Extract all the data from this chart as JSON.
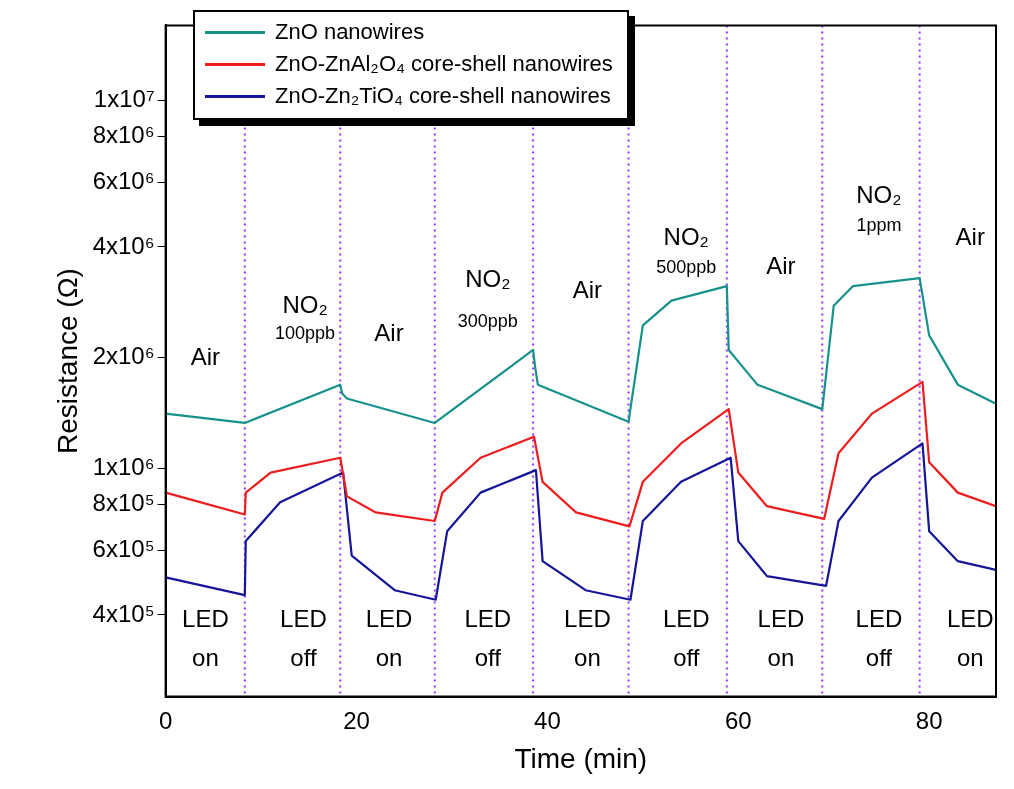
{
  "chart_data": {
    "type": "line",
    "xlabel": "Time (min)",
    "ylabel": "Resistance (Ω)",
    "log": "y",
    "xlim": [
      0,
      87
    ],
    "xticks": [
      0,
      20,
      40,
      60,
      80
    ],
    "ylim": [
      240000,
      16000000
    ],
    "yticks": [
      {
        "value": 400000,
        "label": "4x10⁵"
      },
      {
        "value": 600000,
        "label": "6x10⁵"
      },
      {
        "value": 800000,
        "label": "8x10⁵"
      },
      {
        "value": 1000000,
        "label": "1x10⁶"
      },
      {
        "value": 2000000,
        "label": "2x10⁶"
      },
      {
        "value": 4000000,
        "label": "4x10⁶"
      },
      {
        "value": 6000000,
        "label": "6x10⁶"
      },
      {
        "value": 8000000,
        "label": "8x10⁶"
      },
      {
        "value": 10000000,
        "label": "1x10⁷"
      }
    ],
    "grid": false,
    "legend": "top left",
    "marker": "none",
    "line_style": "solid",
    "series": [
      {
        "name": "ZnO nanowires",
        "color": "#17918c",
        "x": [
          0,
          8.3,
          18.3,
          18.5,
          19,
          28.2,
          38.5,
          38.7,
          39,
          48.5,
          50,
          53,
          58.8,
          59,
          62,
          68.8,
          70,
          72,
          79,
          80,
          83,
          87
        ],
        "values": [
          1410000,
          1330000,
          1690000,
          1600000,
          1550000,
          1330000,
          2100000,
          1900000,
          1690000,
          1340000,
          2450000,
          2860000,
          3130000,
          2100000,
          1690000,
          1450000,
          2770000,
          3130000,
          3290000,
          2300000,
          1690000,
          1500000
        ]
      },
      {
        "name": "ZnO-ZnAl₂O₄ core-shell nanowires",
        "color": "#ee1c1c",
        "x": [
          0,
          8.3,
          8.4,
          11,
          18.3,
          19,
          22,
          28.2,
          29,
          33,
          38.6,
          39.5,
          43,
          48.6,
          50,
          54,
          59,
          60,
          63,
          69,
          70.5,
          74,
          79.3,
          80,
          83,
          87
        ],
        "values": [
          860000,
          750000,
          860000,
          975000,
          1070000,
          840000,
          760000,
          720000,
          860000,
          1070000,
          1220000,
          920000,
          760000,
          696000,
          920000,
          1170000,
          1450000,
          975000,
          790000,
          730000,
          1100000,
          1410000,
          1720000,
          1040000,
          860000,
          790000
        ]
      },
      {
        "name": "ZnO-Zn₂TiO₄ core-shell nanowires",
        "color": "#15159a",
        "x": [
          0,
          8.3,
          8.4,
          12,
          18.6,
          19.5,
          24,
          28.3,
          29.5,
          33,
          38.8,
          39.5,
          44,
          48.7,
          50,
          54,
          59.2,
          60,
          63,
          69.2,
          70.5,
          74,
          79.3,
          80,
          83,
          87
        ],
        "values": [
          506000,
          453000,
          635000,
          810000,
          975000,
          580000,
          467000,
          440000,
          675000,
          860000,
          990000,
          560000,
          467000,
          440000,
          720000,
          920000,
          1070000,
          635000,
          510000,
          480000,
          720000,
          945000,
          1170000,
          675000,
          560000,
          530000
        ]
      }
    ],
    "ref_lines": [
      {
        "axis": "x",
        "value": 8.3,
        "color": "#9933ff",
        "line_style": "dotted"
      },
      {
        "axis": "x",
        "value": 18.3,
        "color": "#9933ff",
        "line_style": "dotted"
      },
      {
        "axis": "x",
        "value": 28.2,
        "color": "#9933ff",
        "line_style": "dotted"
      },
      {
        "axis": "x",
        "value": 38.5,
        "color": "#9933ff",
        "line_style": "dotted"
      },
      {
        "axis": "x",
        "value": 48.5,
        "color": "#9933ff",
        "line_style": "dotted"
      },
      {
        "axis": "x",
        "value": 58.8,
        "color": "#9933ff",
        "line_style": "dotted"
      },
      {
        "axis": "x",
        "value": 68.8,
        "color": "#9933ff",
        "line_style": "dotted"
      },
      {
        "axis": "x",
        "value": 79,
        "color": "#9933ff",
        "line_style": "dotted"
      }
    ],
    "annotations": [
      "Air",
      "NO₂",
      "100ppb",
      "Air",
      "NO₂",
      "300ppb",
      "Air",
      "NO₂",
      "500ppb",
      "Air",
      "NO₂",
      "1ppm",
      "Air",
      "LED",
      "on",
      "LED",
      "off",
      "LED",
      "on",
      "LED",
      "off",
      "LED",
      "on",
      "LED",
      "off",
      "LED",
      "on",
      "LED",
      "off",
      "LED",
      "on"
    ]
  }
}
